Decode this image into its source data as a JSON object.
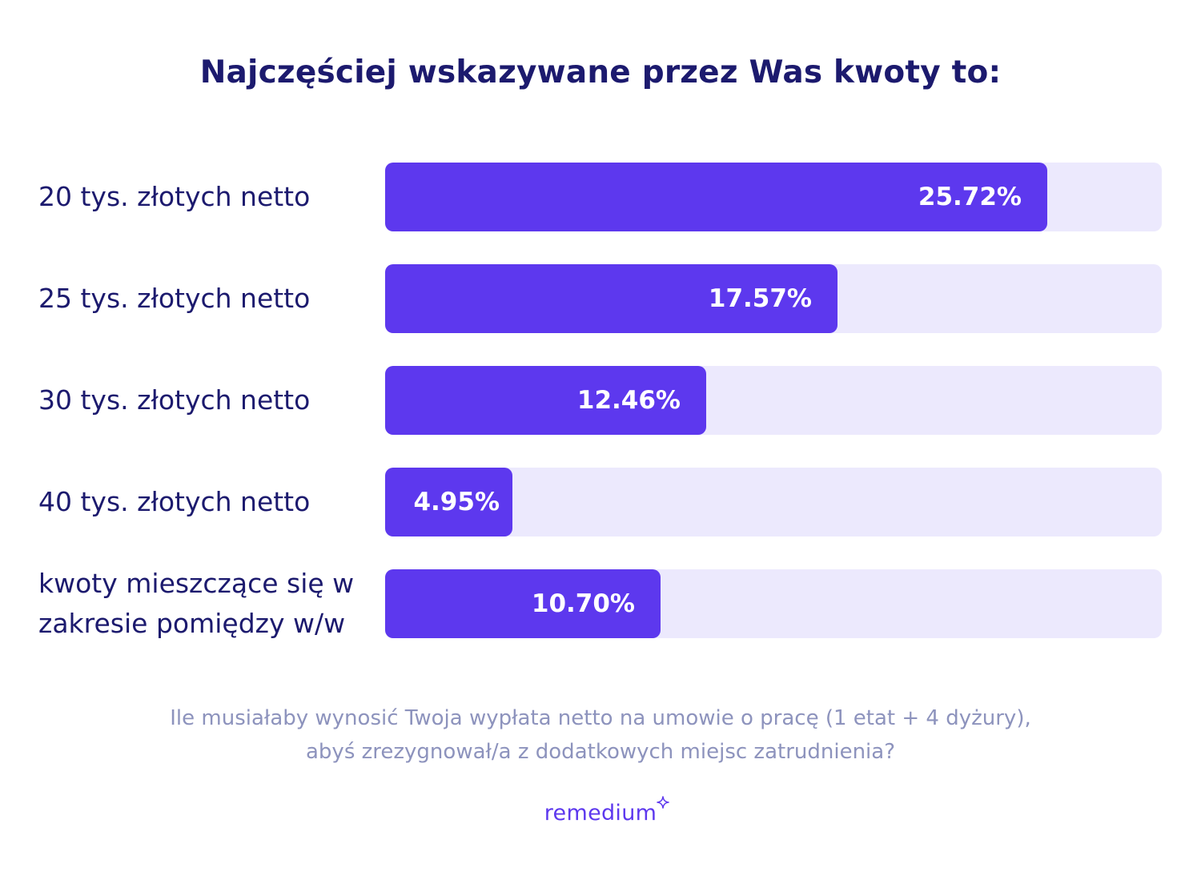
{
  "colors": {
    "title": "#1c1a6e",
    "bar": "#5d38ee",
    "track": "#ece9fd",
    "footnote": "#8d93bd",
    "brand": "#5d38ee"
  },
  "chart_data": {
    "type": "bar",
    "orientation": "horizontal",
    "title": "Najczęściej wskazywane przez Was kwoty to:",
    "categories": [
      "20 tys. złotych netto",
      "25 tys. złotych netto",
      "30 tys. złotych netto",
      "40 tys. złotych netto",
      "kwoty mieszczące się w zakresie pomiędzy w/w"
    ],
    "values": [
      25.72,
      17.57,
      12.46,
      4.95,
      10.7
    ],
    "value_labels": [
      "25.72%",
      "17.57%",
      "12.46%",
      "4.95%",
      "10.70%"
    ],
    "xlim": [
      0,
      30.17
    ],
    "grid": false,
    "legend": "none"
  },
  "footnote": {
    "line1": "Ile musiałaby wynosić Twoja wypłata netto na umowie o pracę (1 etat + 4 dyżury),",
    "line2": "abyś zrezygnował/a z dodatkowych miejsc zatrudnienia?"
  },
  "brand": {
    "logo_text": "remedium",
    "icon": "sparkle-icon"
  }
}
